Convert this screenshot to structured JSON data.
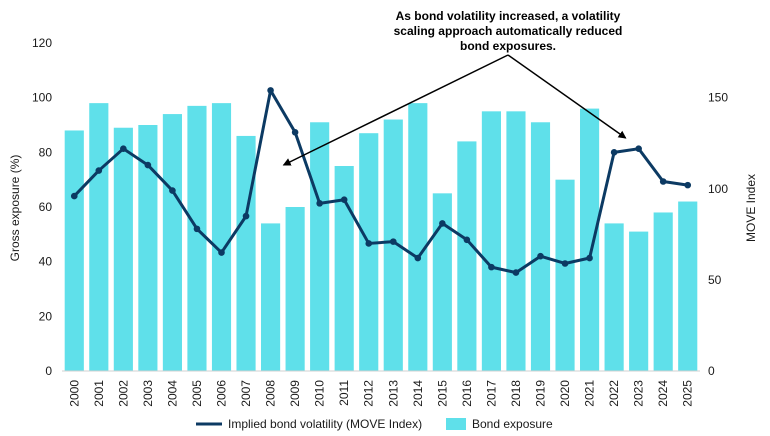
{
  "chart_data": {
    "type": "bar",
    "categories": [
      "2000",
      "2001",
      "2002",
      "2003",
      "2004",
      "2005",
      "2006",
      "2007",
      "2008",
      "2009",
      "2010",
      "2011",
      "2012",
      "2013",
      "2014",
      "2015",
      "2016",
      "2017",
      "2018",
      "2019",
      "2020",
      "2021",
      "2022",
      "2023",
      "2024",
      "2025"
    ],
    "series": [
      {
        "name": "Bond exposure",
        "type": "bar",
        "axis": "left",
        "color": "#5fe0ea",
        "values": [
          88,
          98,
          89,
          90,
          94,
          97,
          98,
          86,
          54,
          60,
          91,
          75,
          87,
          92,
          98,
          65,
          84,
          95,
          95,
          91,
          70,
          96,
          54,
          51,
          58,
          62
        ]
      },
      {
        "name": "Implied bond volatility (MOVE Index)",
        "type": "line",
        "axis": "right",
        "color": "#0c3a63",
        "values": [
          96,
          110,
          122,
          113,
          99,
          78,
          65,
          85,
          154,
          131,
          92,
          94,
          70,
          71,
          62,
          81,
          72,
          57,
          54,
          63,
          59,
          62,
          120,
          122,
          104,
          102
        ]
      }
    ],
    "ylabel": "Gross exposure (%)",
    "ylim": [
      0,
      120
    ],
    "y_ticks": [
      "0",
      "20",
      "40",
      "60",
      "80",
      "100",
      "120"
    ],
    "y2label": "MOVE Index",
    "y2lim": [
      0,
      180
    ],
    "y2_ticks": [
      "0",
      "50",
      "100",
      "150"
    ],
    "grid": false,
    "legend_position": "bottom",
    "annotation": {
      "lines": [
        "As bond volatility increased, a volatility",
        "scaling approach automatically reduced",
        "bond exposures."
      ],
      "arrow_targets": [
        "2008",
        "2023"
      ]
    }
  }
}
